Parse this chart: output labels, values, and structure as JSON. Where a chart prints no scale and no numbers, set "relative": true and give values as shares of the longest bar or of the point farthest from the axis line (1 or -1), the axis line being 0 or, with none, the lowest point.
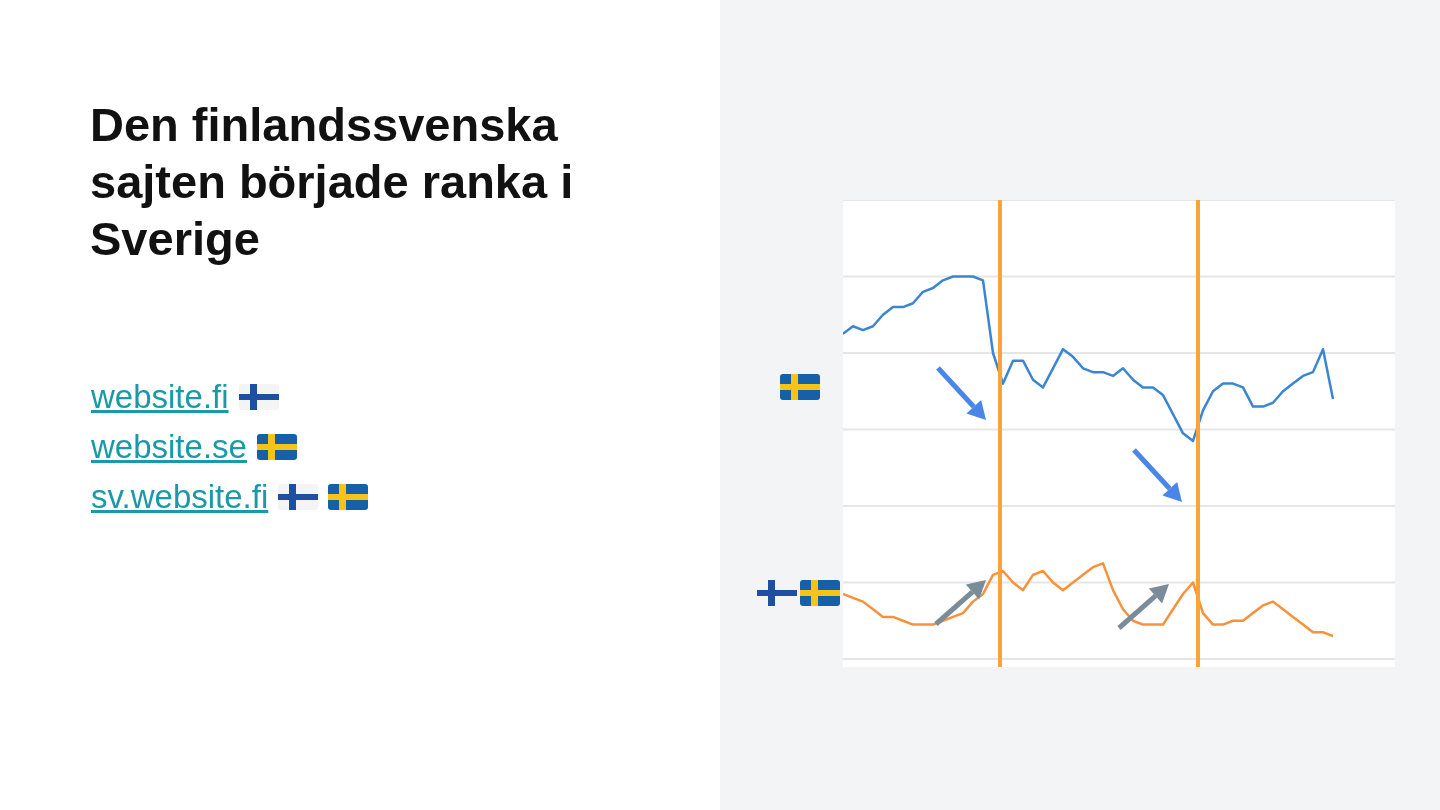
{
  "chart_data": {
    "type": "line",
    "title": "Den finlandssvenska sajten började ranka i Sverige",
    "annotations": [
      "website.fi",
      "website.se",
      "sv.website.fi"
    ],
    "relative": true,
    "grid": "y",
    "legend": false,
    "marker": "none",
    "categories": [
      null,
      null,
      null,
      null,
      null,
      null,
      null,
      null,
      null,
      null,
      null,
      null,
      null,
      null,
      null,
      null,
      null,
      null,
      null,
      null,
      null,
      null,
      null,
      null,
      null,
      null,
      null,
      null,
      null,
      null,
      null,
      null,
      null,
      null,
      null,
      null,
      null,
      null,
      null,
      null,
      null,
      null,
      null,
      null,
      null,
      null,
      null,
      null,
      null,
      null
    ],
    "series": [
      {
        "color": "#3a86d0",
        "values": [
          0.85,
          0.87,
          0.86,
          0.87,
          0.9,
          0.92,
          0.92,
          0.93,
          0.96,
          0.97,
          0.99,
          1,
          1,
          1,
          0.99,
          0.8,
          0.72,
          0.78,
          0.78,
          0.73,
          0.71,
          0.76,
          0.81,
          0.79,
          0.76,
          0.75,
          0.75,
          0.74,
          0.76,
          0.73,
          0.71,
          0.71,
          0.69,
          0.64,
          0.59,
          0.57,
          0.65,
          0.7,
          0.72,
          0.72,
          0.71,
          0.66,
          0.66,
          0.67,
          0.7,
          0.72,
          0.74,
          0.75,
          0.81,
          0.68
        ]
      },
      {
        "color": "#f7923a",
        "values": [
          0.17,
          0.16,
          0.15,
          0.13,
          0.11,
          0.11,
          0.1,
          0.09,
          0.09,
          0.09,
          0.1,
          0.11,
          0.12,
          0.15,
          0.17,
          0.22,
          0.23,
          0.2,
          0.18,
          0.22,
          0.23,
          0.2,
          0.18,
          0.2,
          0.22,
          0.24,
          0.25,
          0.18,
          0.13,
          0.1,
          0.09,
          0.09,
          0.09,
          0.13,
          0.17,
          0.2,
          0.12,
          0.09,
          0.09,
          0.1,
          0.1,
          0.12,
          0.14,
          0.15,
          0.13,
          0.11,
          0.09,
          0.07,
          0.07,
          0.06
        ]
      }
    ]
  }
}
